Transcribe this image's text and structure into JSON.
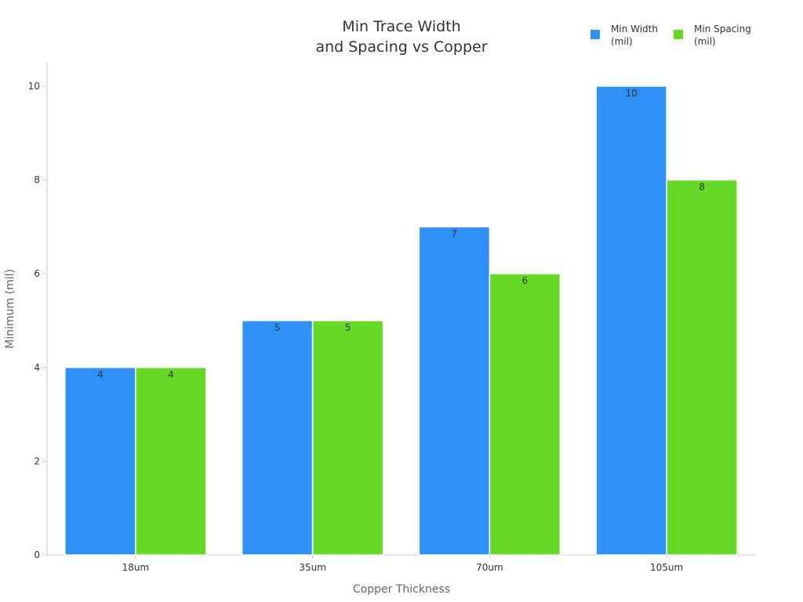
{
  "chart_data": {
    "type": "bar",
    "title_lines": [
      "Min Trace Width",
      "and Spacing vs Copper"
    ],
    "xlabel": "Copper Thickness",
    "ylabel": "Minimum (mil)",
    "categories": [
      "18um",
      "35um",
      "70um",
      "105um"
    ],
    "series": [
      {
        "name_lines": [
          "Min Width",
          "(mil)"
        ],
        "color": "#2f90f8",
        "values": [
          4,
          5,
          7,
          10
        ]
      },
      {
        "name_lines": [
          "Min Spacing",
          "(mil)"
        ],
        "color": "#66d926",
        "values": [
          4,
          5,
          6,
          8
        ]
      }
    ],
    "ylim": [
      0,
      10.5
    ],
    "yticks": [
      0,
      2,
      4,
      6,
      8,
      10
    ],
    "grid": false,
    "legend_position": "top-right"
  }
}
